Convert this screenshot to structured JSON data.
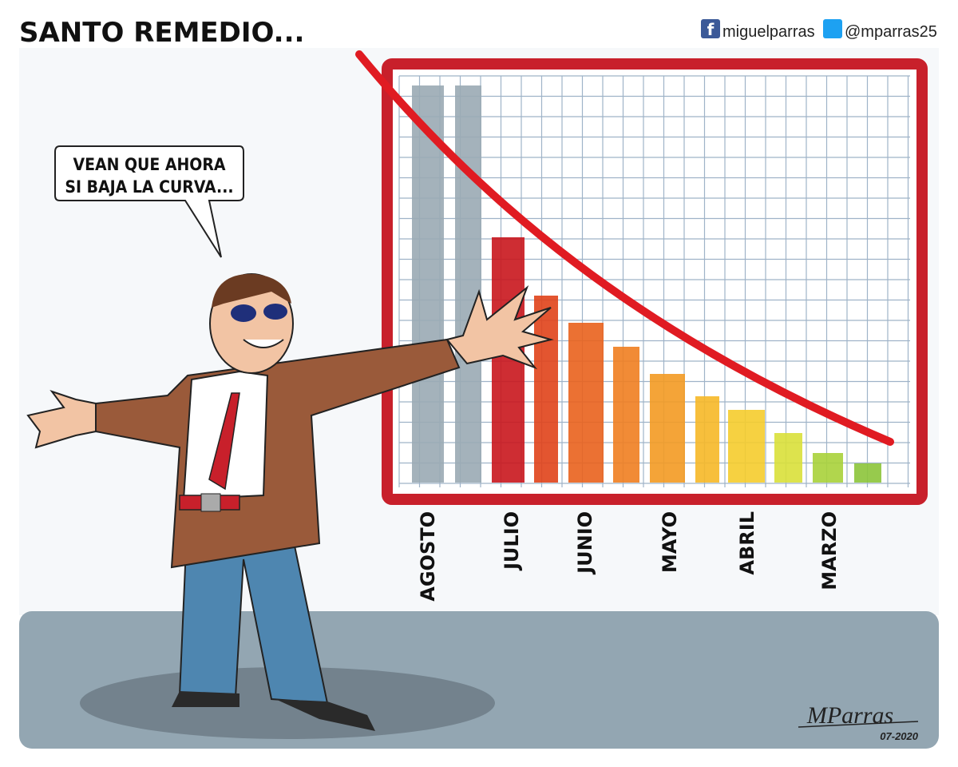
{
  "header": {
    "title": "SANTO REMEDIO...",
    "facebook": "miguelparras",
    "twitter": "@mparras25"
  },
  "speech_bubble": {
    "lines": [
      "VEAN QUE AHORA",
      "SI BAJA LA CURVA..."
    ]
  },
  "chart": {
    "labels": [
      "AGOSTO",
      "JULIO",
      "JUNIO",
      "MAYO",
      "ABRIL",
      "MARZO"
    ]
  },
  "signature": {
    "name": "MParras",
    "date": "07-2020"
  }
}
